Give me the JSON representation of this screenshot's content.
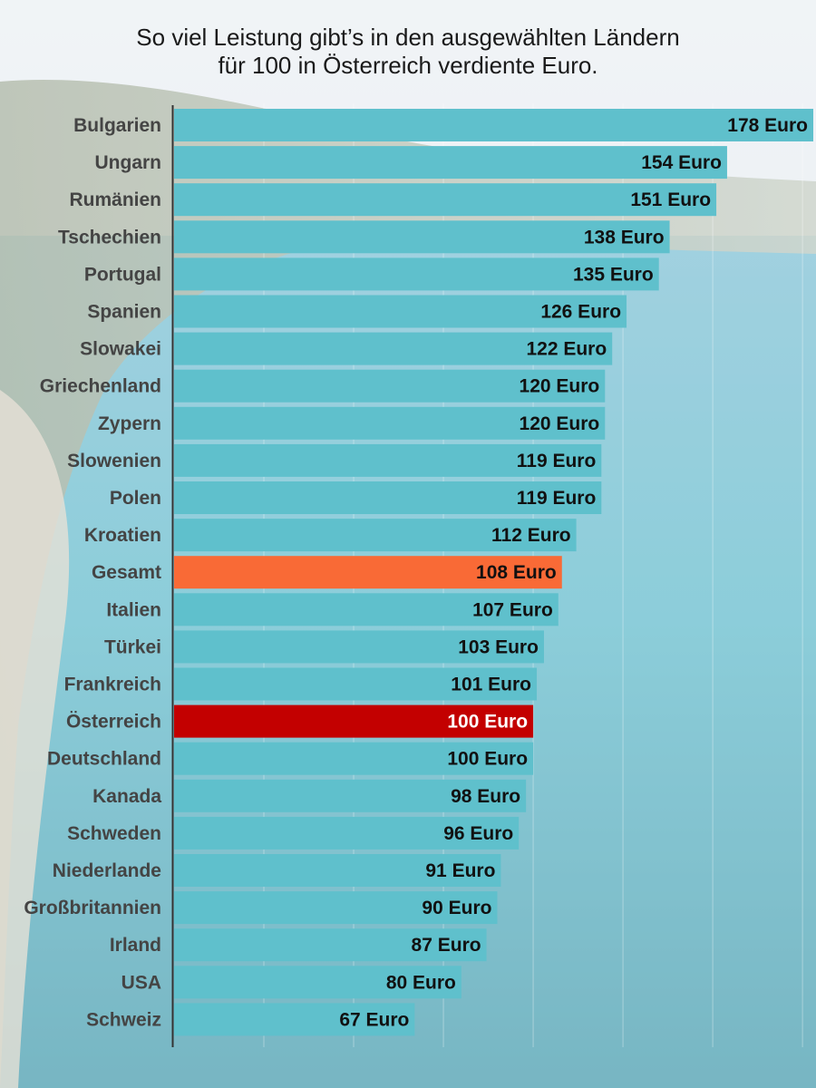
{
  "title_lines": [
    "So viel Leistung gibt’s in den ausgewählten Ländern",
    "für 100 in Österreich verdiente Euro."
  ],
  "colors": {
    "bar": "#5fc0cc",
    "highlight_gesamt": "#f96a36",
    "highlight_oesterreich": "#c30000",
    "label_text": "#444444",
    "value_text": "#111111",
    "value_text_on_dark": "#ffffff"
  },
  "chart_data": {
    "type": "bar",
    "orientation": "horizontal",
    "title": "So viel Leistung gibt’s in den ausgewählten Ländern für 100 in Österreich verdiente Euro.",
    "unit": "Euro",
    "categories": [
      "Bulgarien",
      "Ungarn",
      "Rumänien",
      "Tschechien",
      "Portugal",
      "Spanien",
      "Slowakei",
      "Griechenland",
      "Zypern",
      "Slowenien",
      "Polen",
      "Kroatien",
      "Gesamt",
      "Italien",
      "Türkei",
      "Frankreich",
      "Österreich",
      "Deutschland",
      "Kanada",
      "Schweden",
      "Niederlande",
      "Großbritannien",
      "Irland",
      "USA",
      "Schweiz"
    ],
    "values": [
      178,
      154,
      151,
      138,
      135,
      126,
      122,
      120,
      120,
      119,
      119,
      112,
      108,
      107,
      103,
      101,
      100,
      100,
      98,
      96,
      91,
      90,
      87,
      80,
      67
    ],
    "value_labels": [
      "178 Euro",
      "154 Euro",
      "151 Euro",
      "138 Euro",
      "135 Euro",
      "126 Euro",
      "122 Euro",
      "120 Euro",
      "120 Euro",
      "119 Euro",
      "119 Euro",
      "112 Euro",
      "108 Euro",
      "107 Euro",
      "103 Euro",
      "101 Euro",
      "100 Euro",
      "100 Euro",
      "98 Euro",
      "96 Euro",
      "91 Euro",
      "90 Euro",
      "87 Euro",
      "80 Euro",
      "67 Euro"
    ],
    "highlights": {
      "Gesamt": "highlight_gesamt",
      "Österreich": "highlight_oesterreich"
    },
    "xlim": [
      0,
      178
    ],
    "grid": true
  }
}
